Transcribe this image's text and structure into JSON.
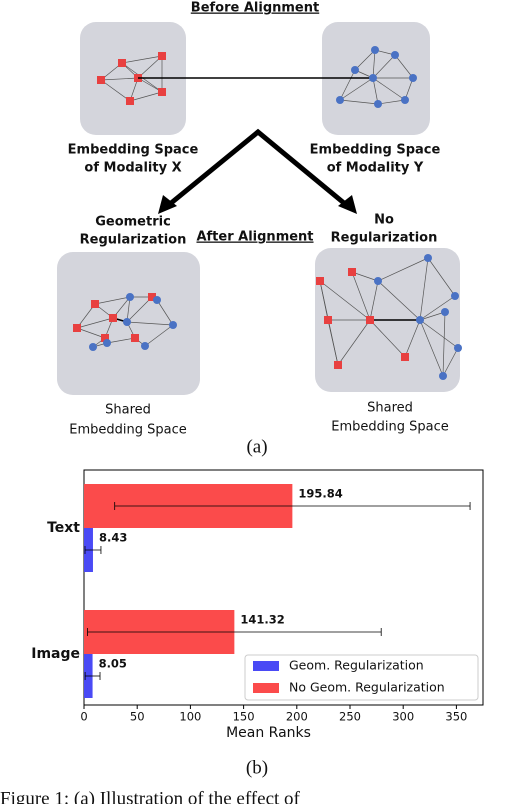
{
  "diagram": {
    "before_title": "Before Alignment",
    "after_title": "After Alignment",
    "space_x": [
      "Embedding Space",
      "of Modality X"
    ],
    "space_y": [
      "Embedding Space",
      "of Modality Y"
    ],
    "geometric": [
      "Geometric",
      "Regularization"
    ],
    "no_reg": [
      "No",
      "Regularization"
    ],
    "shared_left": [
      "Shared",
      "Embedding Space"
    ],
    "shared_right": [
      "Shared",
      "Embedding Space"
    ],
    "panel_label": "(a)"
  },
  "chart_data": {
    "type": "bar",
    "orientation": "horizontal",
    "categories": [
      "Text",
      "Image"
    ],
    "series": [
      {
        "name": "Geom. Regularization",
        "color": "#4a4af5",
        "values": [
          8.43,
          8.05
        ],
        "errors": [
          7.5,
          7
        ]
      },
      {
        "name": "No Geom. Regularization",
        "color": "#fb4b4b",
        "values": [
          195.84,
          141.32
        ],
        "errors": [
          167,
          138
        ]
      }
    ],
    "xlabel": "Mean Ranks",
    "xlim": [
      0,
      375
    ],
    "xticks": [
      0,
      50,
      100,
      150,
      200,
      250,
      300,
      350
    ],
    "legend": "lower right",
    "panel_label": "(b)"
  },
  "caption": "Figure 1: (a) Illustration of the effect of"
}
